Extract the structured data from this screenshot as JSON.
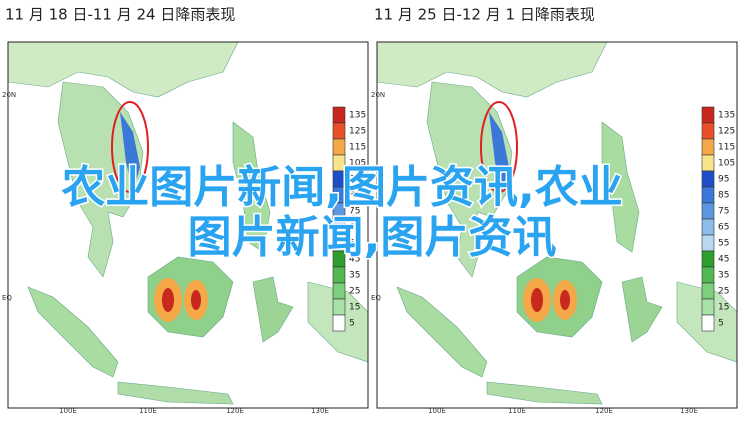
{
  "panels": [
    {
      "title": "11 月 18 日-11 月 24 日降雨表现",
      "lat_labels": [
        "20N",
        "EQ"
      ],
      "lon_labels": [
        "100E",
        "110E",
        "120E",
        "130E"
      ]
    },
    {
      "title": "11 月 25 日-12 月 1 日降雨表现",
      "lat_labels": [
        "20N",
        "EQ"
      ],
      "lon_labels": [
        "100E",
        "110E",
        "120E",
        "130E"
      ]
    }
  ],
  "colorbar": {
    "labels": [
      "135",
      "125",
      "115",
      "105",
      "95",
      "85",
      "75",
      "65",
      "55",
      "45",
      "35",
      "25",
      "15",
      "5"
    ],
    "colors": [
      "#c8281e",
      "#e8502a",
      "#f4a848",
      "#f8e48a",
      "#1e4ec8",
      "#3c78d8",
      "#5c98e2",
      "#8cbce8",
      "#b8d8f0",
      "#2e9e2e",
      "#52b852",
      "#7ccf7c",
      "#a8e2a8",
      "#ffffff"
    ]
  },
  "overlay": {
    "lines": [
      "农业图片新闻,图片资讯,农业",
      "图片新闻,图片资讯"
    ]
  }
}
